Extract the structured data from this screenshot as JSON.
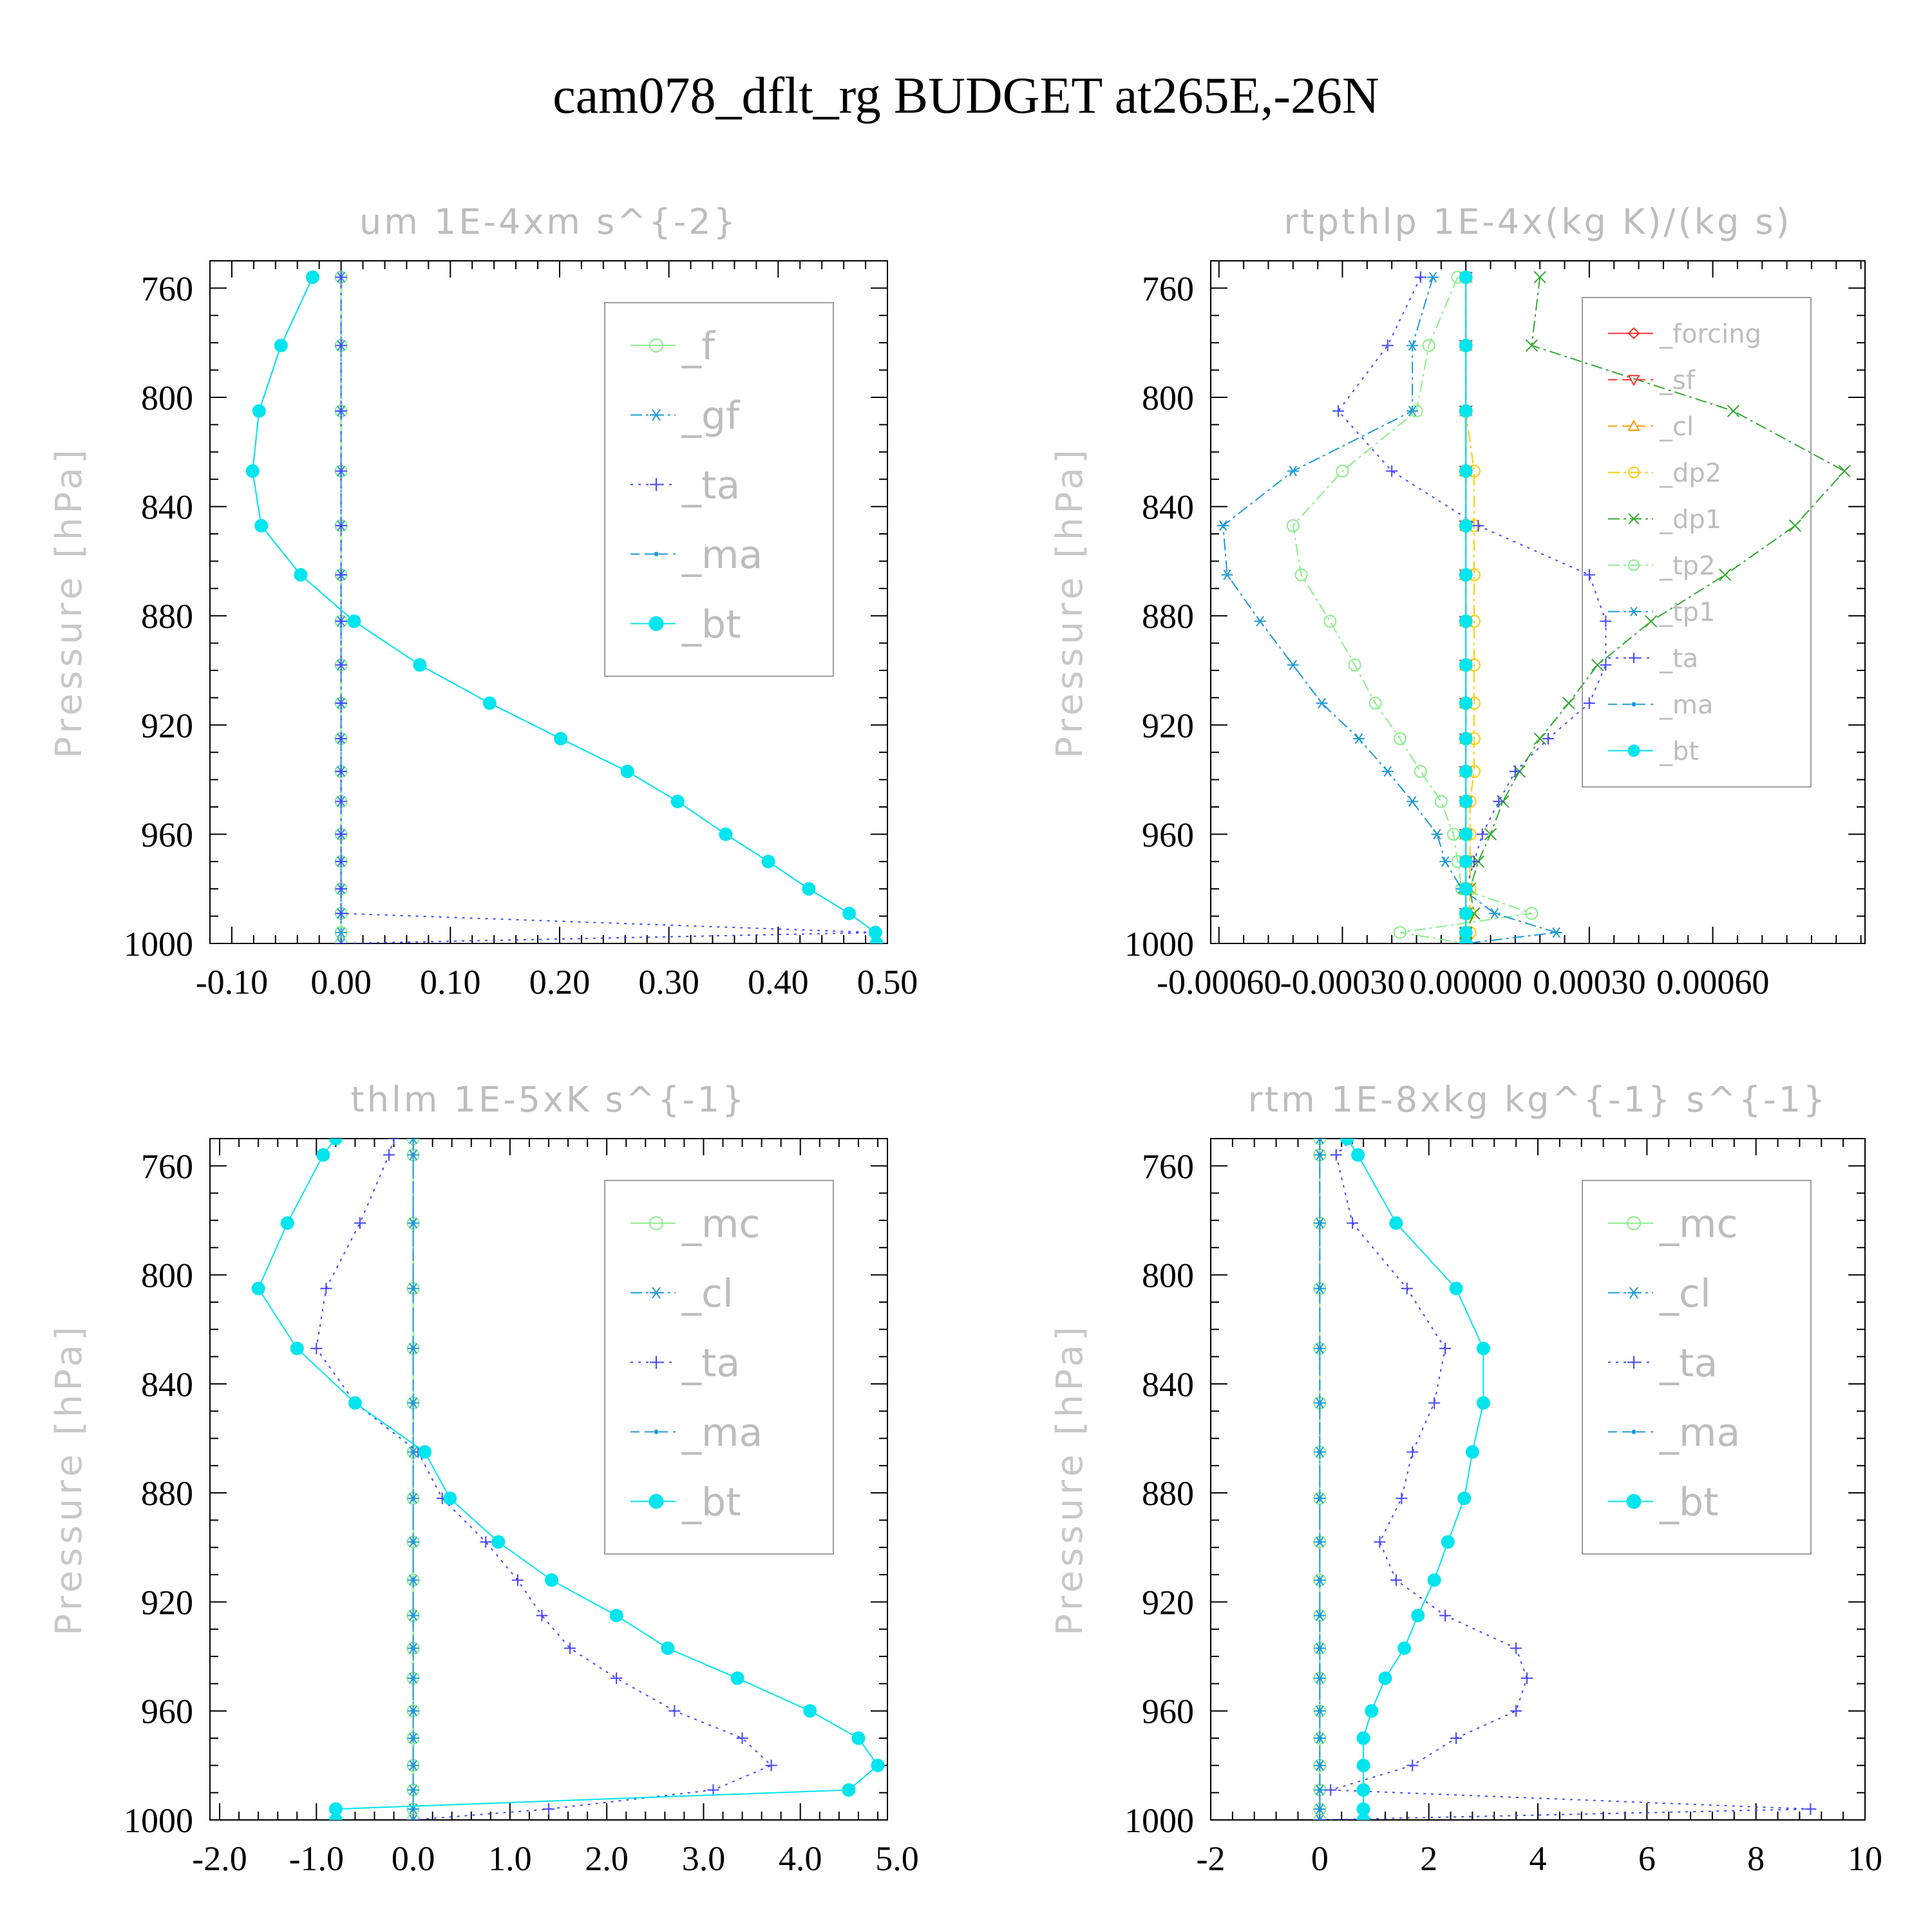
{
  "title": "cam078_dflt_rg  BUDGET at265E,-26N",
  "colors": {
    "green": "#33cc33",
    "lightgreen": "#88ee88",
    "steelblue": "#1f9ad6",
    "blue": "#4444ff",
    "cyan": "#00e5ee",
    "red": "#ff3030",
    "orange": "#ff9900",
    "yellow": "#ffcc00",
    "darkgreen": "#33aa33"
  },
  "chart_data": [
    {
      "type": "line",
      "title": "um  1E-4xm s^{-2}",
      "ylabel": "Pressure [hPa]",
      "xlim": [
        -0.12,
        0.5
      ],
      "ylim": [
        750,
        1000
      ],
      "xticks": [
        -0.1,
        0.0,
        0.1,
        0.2,
        0.3,
        0.4,
        0.5
      ],
      "xtick_labels": [
        "-0.10",
        "0.00",
        "0.10",
        "0.20",
        "0.30",
        "0.40",
        "0.50"
      ],
      "yticks": [
        760,
        800,
        840,
        880,
        920,
        960,
        1000
      ],
      "ytick_labels": [
        "760",
        "800",
        "840",
        "880",
        "920",
        "960",
        "1000"
      ],
      "legend_position": "top-right",
      "legend_font": 60,
      "levels": [
        756,
        781,
        805,
        827,
        847,
        865,
        882,
        898,
        912,
        925,
        937,
        948,
        960,
        970,
        980,
        989,
        996,
        1000
      ],
      "series": [
        {
          "name": "_f",
          "color": "lightgreen",
          "marker": "circle-open",
          "dash": "solid",
          "x": [
            0,
            0,
            0,
            0,
            0,
            0,
            0,
            0,
            0,
            0,
            0,
            0,
            0,
            0,
            0,
            0,
            0,
            0
          ]
        },
        {
          "name": "_gf",
          "color": "steelblue",
          "marker": "asterisk",
          "dash": "dashdot",
          "x": [
            0,
            0,
            0,
            0,
            0,
            0,
            0,
            0,
            0,
            0,
            0,
            0,
            0,
            0,
            0,
            0,
            0,
            0
          ]
        },
        {
          "name": "_ta",
          "color": "blue",
          "marker": "plus",
          "dash": "dotted",
          "x": [
            0,
            0,
            0,
            0,
            0,
            0,
            0,
            0,
            0,
            0,
            0,
            0,
            0,
            0,
            0,
            0,
            0.49,
            0
          ]
        },
        {
          "name": "_ma",
          "color": "steelblue",
          "marker": "dot",
          "dash": "dashed",
          "x": [
            -0.026,
            -0.055,
            -0.075,
            -0.081,
            -0.073,
            -0.037,
            0.012,
            0.072,
            0.136,
            0.201,
            0.262,
            0.308,
            0.352,
            0.391,
            0.428,
            0.465,
            0.489,
            0.49
          ]
        },
        {
          "name": "_bt",
          "color": "cyan",
          "marker": "filled-circle",
          "dash": "solid",
          "x": [
            -0.026,
            -0.055,
            -0.075,
            -0.081,
            -0.073,
            -0.037,
            0.012,
            0.072,
            0.136,
            0.201,
            0.262,
            0.308,
            0.352,
            0.391,
            0.428,
            0.465,
            0.489,
            0.49
          ]
        }
      ]
    },
    {
      "type": "line",
      "title": "rtpthlp  1E-4x(kg K)/(kg s)",
      "ylabel": "Pressure [hPa]",
      "xlim": [
        -0.00062,
        0.00097
      ],
      "ylim": [
        750,
        1000
      ],
      "xticks": [
        -0.0006,
        -0.0003,
        0.0,
        0.0003,
        0.0006
      ],
      "xtick_labels": [
        "-0.00060",
        "-0.00030",
        "0.00000",
        "0.00030",
        "0.00060"
      ],
      "yticks": [
        760,
        800,
        840,
        880,
        920,
        960,
        1000
      ],
      "ytick_labels": [
        "760",
        "800",
        "840",
        "880",
        "920",
        "960",
        "1000"
      ],
      "legend_position": "top-right",
      "legend_font": 40,
      "levels": [
        756,
        781,
        805,
        827,
        847,
        865,
        882,
        898,
        912,
        925,
        937,
        948,
        960,
        970,
        980,
        989,
        996,
        1000
      ],
      "series": [
        {
          "name": "_forcing",
          "color": "red",
          "marker": "diamond-open",
          "dash": "solid",
          "x": [
            0,
            0,
            0,
            0,
            0,
            0,
            0,
            0,
            0,
            0,
            0,
            0,
            0,
            0,
            0,
            0,
            0,
            0
          ]
        },
        {
          "name": "_sf",
          "color": "red",
          "marker": "triangle-down",
          "dash": "dashed",
          "x": [
            0,
            0,
            0,
            0,
            0,
            0,
            0,
            0,
            0,
            0,
            0,
            0,
            0,
            0,
            0,
            0,
            0,
            0
          ]
        },
        {
          "name": "_cl",
          "color": "orange",
          "marker": "triangle-open",
          "dash": "dashed",
          "x": [
            0,
            0,
            0,
            0,
            0,
            0,
            0,
            0,
            0,
            0,
            0,
            0,
            0,
            0,
            0,
            0,
            0,
            0
          ]
        },
        {
          "name": "_dp2",
          "color": "yellow",
          "marker": "circle-open",
          "dash": "dashdot",
          "x": [
            0,
            0,
            0,
            2e-05,
            2e-05,
            2e-05,
            2e-05,
            2e-05,
            2e-05,
            2e-05,
            2e-05,
            1e-05,
            1e-05,
            1e-05,
            1e-05,
            1e-05,
            1e-05,
            0
          ]
        },
        {
          "name": "_dp1",
          "color": "darkgreen",
          "marker": "x",
          "dash": "dashdot",
          "x": [
            0.00018,
            0.00016,
            0.00065,
            0.00092,
            0.0008,
            0.00063,
            0.00045,
            0.00032,
            0.00025,
            0.00018,
            0.00013,
            9e-05,
            6e-05,
            3e-05,
            1e-05,
            2e-05,
            0.0,
            0
          ]
        },
        {
          "name": "_tp2",
          "color": "lightgreen",
          "marker": "circle-open",
          "dash": "dashdot",
          "x": [
            -2e-05,
            -9e-05,
            -0.00012,
            -0.0003,
            -0.00042,
            -0.0004,
            -0.00033,
            -0.00027,
            -0.00022,
            -0.00016,
            -0.00011,
            -6e-05,
            -3e-05,
            -2e-05,
            -1e-05,
            0.00016,
            -0.00016,
            0
          ]
        },
        {
          "name": "_tp1",
          "color": "steelblue",
          "marker": "asterisk",
          "dash": "dashdot",
          "x": [
            -8e-05,
            -0.00013,
            -0.00013,
            -0.00042,
            -0.00059,
            -0.00058,
            -0.0005,
            -0.00042,
            -0.00035,
            -0.00026,
            -0.00019,
            -0.00013,
            -7e-05,
            -5e-05,
            -1e-05,
            7e-05,
            0.00022,
            0
          ]
        },
        {
          "name": "_ta",
          "color": "blue",
          "marker": "plus",
          "dash": "dotted",
          "x": [
            -0.00011,
            -0.00019,
            -0.00031,
            -0.00018,
            3e-05,
            0.0003,
            0.00034,
            0.00034,
            0.0003,
            0.0002,
            0.00012,
            8e-05,
            4e-05,
            2e-05,
            0.0,
            0.0,
            0.0,
            0
          ]
        },
        {
          "name": "_ma",
          "color": "steelblue",
          "marker": "dot",
          "dash": "dashed",
          "x": [
            0,
            0,
            0,
            0,
            0,
            0,
            0,
            0,
            0,
            0,
            0,
            0,
            0,
            0,
            0,
            0,
            0,
            0
          ]
        },
        {
          "name": "_bt",
          "color": "cyan",
          "marker": "filled-circle",
          "dash": "solid",
          "x": [
            0,
            0,
            0,
            0,
            0,
            0,
            0,
            0,
            0,
            0,
            0,
            0,
            0,
            0,
            0,
            0,
            0,
            0
          ]
        }
      ]
    },
    {
      "type": "line",
      "title": "thlm  1E-5xK s^{-1}",
      "ylabel": "Pressure [hPa]",
      "xlim": [
        -2.1,
        4.9
      ],
      "ylim": [
        750,
        1000
      ],
      "xticks": [
        -2,
        -1,
        0,
        1,
        2,
        3,
        4,
        5
      ],
      "xtick_labels": [
        "-2.0",
        "-1.0",
        "0.0",
        "1.0",
        "2.0",
        "3.0",
        "4.0",
        "5.0"
      ],
      "yticks": [
        760,
        800,
        840,
        880,
        920,
        960,
        1000
      ],
      "ytick_labels": [
        "760",
        "800",
        "840",
        "880",
        "920",
        "960",
        "1000"
      ],
      "legend_position": "top-right",
      "legend_font": 60,
      "levels": [
        750,
        756,
        781,
        805,
        827,
        847,
        865,
        882,
        898,
        912,
        925,
        937,
        948,
        960,
        970,
        980,
        989,
        996,
        1000
      ],
      "series": [
        {
          "name": "_mc",
          "color": "lightgreen",
          "marker": "circle-open",
          "dash": "solid",
          "x": [
            0,
            0,
            0,
            0,
            0,
            0,
            0,
            0,
            0,
            0,
            0,
            0,
            0,
            0,
            0,
            0,
            0,
            0,
            0
          ]
        },
        {
          "name": "_cl",
          "color": "steelblue",
          "marker": "asterisk",
          "dash": "dashdot",
          "x": [
            0,
            0,
            0,
            0,
            0,
            0,
            0,
            0,
            0,
            0,
            0,
            0,
            0,
            0,
            0,
            0,
            0,
            0,
            0
          ]
        },
        {
          "name": "_ta",
          "color": "blue",
          "marker": "plus",
          "dash": "dotted",
          "x": [
            -0.2,
            -0.25,
            -0.55,
            -0.9,
            -1.0,
            -0.6,
            0.05,
            0.3,
            0.75,
            1.08,
            1.33,
            1.62,
            2.1,
            2.7,
            3.4,
            3.7,
            3.1,
            1.4,
            0.0
          ]
        },
        {
          "name": "_ma",
          "color": "steelblue",
          "marker": "dot",
          "dash": "dashed",
          "x": [
            0,
            0,
            0,
            0,
            0,
            0,
            0,
            0,
            0,
            0,
            0,
            0,
            0,
            0,
            0,
            0,
            0,
            0,
            0
          ]
        },
        {
          "name": "_bt",
          "color": "cyan",
          "marker": "filled-circle",
          "dash": "solid",
          "x": [
            -0.8,
            -0.93,
            -1.3,
            -1.6,
            -1.2,
            -0.6,
            0.12,
            0.38,
            0.88,
            1.43,
            2.1,
            2.63,
            3.35,
            4.1,
            4.6,
            4.8,
            4.5,
            -0.8,
            -0.8
          ]
        }
      ]
    },
    {
      "type": "line",
      "title": "rtm  1E-8xkg kg^{-1} s^{-1}",
      "ylabel": "Pressure [hPa]",
      "xlim": [
        -2,
        10
      ],
      "ylim": [
        750,
        1000
      ],
      "xticks": [
        -2,
        0,
        2,
        4,
        6,
        8,
        10
      ],
      "xtick_labels": [
        "-2",
        "0",
        "2",
        "4",
        "6",
        "8",
        "10"
      ],
      "yticks": [
        760,
        800,
        840,
        880,
        920,
        960,
        1000
      ],
      "ytick_labels": [
        "760",
        "800",
        "840",
        "880",
        "920",
        "960",
        "1000"
      ],
      "legend_position": "top-right",
      "legend_font": 60,
      "levels": [
        750,
        756,
        781,
        805,
        827,
        847,
        865,
        882,
        898,
        912,
        925,
        937,
        948,
        960,
        970,
        980,
        989,
        996,
        1000
      ],
      "series": [
        {
          "name": "_mc",
          "color": "lightgreen",
          "marker": "circle-open",
          "dash": "solid",
          "x": [
            0,
            0,
            0,
            0,
            0,
            0,
            0,
            0,
            0,
            0,
            0,
            0,
            0,
            0,
            0,
            0,
            0,
            0,
            0
          ]
        },
        {
          "name": "_cl",
          "color": "steelblue",
          "marker": "asterisk",
          "dash": "dashdot",
          "x": [
            0,
            0,
            0,
            0,
            0,
            0,
            0,
            0,
            0,
            0,
            0,
            0,
            0,
            0,
            0,
            0,
            0,
            0,
            0
          ]
        },
        {
          "name": "_ta",
          "color": "blue",
          "marker": "plus",
          "dash": "dotted",
          "x": [
            0.6,
            0.3,
            0.6,
            1.6,
            2.3,
            2.1,
            1.7,
            1.5,
            1.1,
            1.4,
            2.3,
            3.6,
            3.8,
            3.6,
            2.5,
            1.7,
            0.2,
            9.0,
            0.0
          ]
        },
        {
          "name": "_ma",
          "color": "steelblue",
          "marker": "dot",
          "dash": "dashed",
          "x": [
            0,
            0,
            0,
            0,
            0,
            0,
            0,
            0,
            0,
            0,
            0,
            0,
            0,
            0,
            0,
            0,
            0,
            0,
            0
          ]
        },
        {
          "name": "_bt",
          "color": "cyan",
          "marker": "filled-circle",
          "dash": "solid",
          "x": [
            0.5,
            0.7,
            1.4,
            2.5,
            3.0,
            3.0,
            2.8,
            2.65,
            2.35,
            2.1,
            1.8,
            1.55,
            1.2,
            0.95,
            0.8,
            0.8,
            0.8,
            0.8,
            0.8
          ]
        }
      ]
    }
  ]
}
